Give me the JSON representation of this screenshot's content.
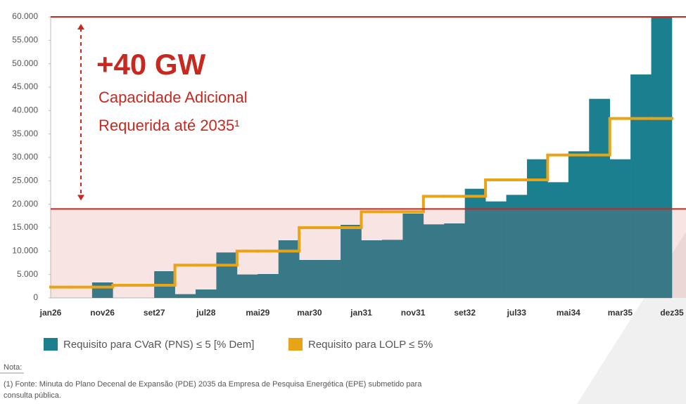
{
  "chart_data": {
    "type": "bar",
    "annotation": {
      "headline": "+40 GW",
      "lines": [
        "Capacidade Adicional",
        "Requerida até 2035¹"
      ]
    },
    "x_labels": [
      "jan26",
      "nov26",
      "set27",
      "jul28",
      "mai29",
      "mar30",
      "jan31",
      "nov31",
      "set32",
      "jul33",
      "mai34",
      "mar35",
      "dez35"
    ],
    "categories": [
      null,
      null,
      null,
      null,
      null,
      null,
      null,
      null,
      null,
      null,
      null,
      null,
      null,
      null,
      null,
      null,
      null,
      null,
      null,
      null,
      null,
      null,
      null,
      null,
      null,
      null,
      null,
      null,
      null,
      null
    ],
    "series": [
      {
        "name": "Requisito para CVaR (PNS) ≤ 5 [% Dem]",
        "color": "#1b7f8f",
        "kind": "bar",
        "values": [
          0,
          0,
          3300,
          0,
          0,
          5700,
          800,
          1800,
          9700,
          5000,
          5100,
          12300,
          8100,
          8100,
          15600,
          12300,
          12400,
          18000,
          15700,
          15900,
          23300,
          20600,
          22000,
          29600,
          24700,
          31300,
          42500,
          29600,
          47700,
          60000
        ]
      },
      {
        "name": "Requisito para LOLP ≤ 5%",
        "color": "#e8a317",
        "kind": "step",
        "values": [
          2300,
          2300,
          2300,
          2700,
          2700,
          2700,
          7000,
          7000,
          7000,
          10000,
          10000,
          10000,
          15000,
          15000,
          15000,
          18400,
          18400,
          18400,
          21700,
          21700,
          21700,
          25200,
          25200,
          25200,
          30500,
          30500,
          30500,
          38300,
          38300,
          38300
        ]
      }
    ],
    "reference_lines": [
      19000,
      60000
    ],
    "ylim": [
      0,
      60000
    ],
    "yticks": [
      0,
      {
        "value": 5000,
        "label": "5.000"
      },
      {
        "value": 10000,
        "label": "10.000"
      },
      {
        "value": 15000,
        "label": "15.000"
      },
      {
        "value": 20000,
        "label": "20.000"
      },
      {
        "value": 25000,
        "label": "25.000"
      },
      {
        "value": 30000,
        "label": "30.000"
      },
      {
        "value": 35000,
        "label": "35.000"
      },
      {
        "value": 40000,
        "label": "40.000"
      },
      {
        "value": 45000,
        "label": "45.000"
      },
      {
        "value": 50000,
        "label": "50.000"
      },
      {
        "value": 55000,
        "label": "55.000"
      },
      {
        "value": 60000,
        "label": "60.000"
      }
    ],
    "note": {
      "title": "Nota:",
      "footnote": [
        "(1) Fonte: Minuta do Plano Decenal de Expansão (PDE) 2035 da Empresa de Pesquisa Energética (EPE) submetido para",
        "consulta pública."
      ]
    }
  }
}
